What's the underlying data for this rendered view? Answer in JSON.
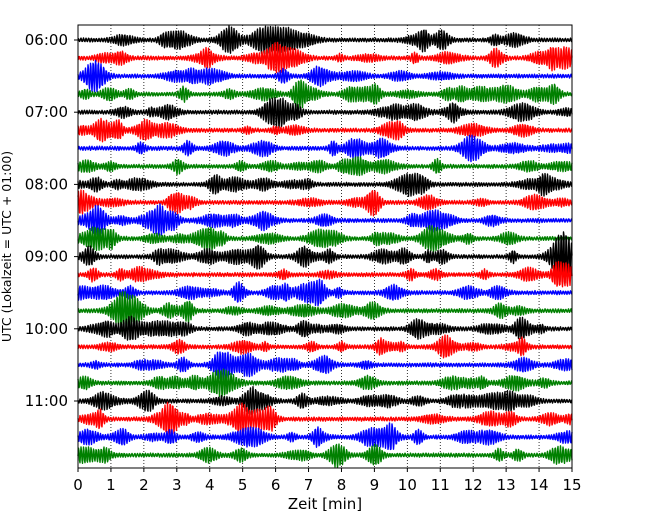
{
  "chart_data": {
    "type": "line",
    "xlabel": "Zeit  [min]",
    "ylabel": "UTC (Lokalzeit = UTC + 01:00)",
    "xlim": [
      0,
      15
    ],
    "x_ticks": [
      "0",
      "1",
      "2",
      "3",
      "4",
      "5",
      "6",
      "7",
      "8",
      "9",
      "10",
      "11",
      "12",
      "13",
      "14",
      "15"
    ],
    "y_ticks": [
      "06:00",
      "07:00",
      "08:00",
      "09:00",
      "10:00",
      "11:00"
    ],
    "grid": "vertical dotted",
    "trace_colors": [
      "#000000",
      "#ff0000",
      "#0000ff",
      "#008000"
    ],
    "traces_per_hour": 4,
    "series": [
      {
        "start": "06:00",
        "color": "#000000"
      },
      {
        "start": "06:15",
        "color": "#ff0000"
      },
      {
        "start": "06:30",
        "color": "#0000ff"
      },
      {
        "start": "06:45",
        "color": "#008000"
      },
      {
        "start": "07:00",
        "color": "#000000"
      },
      {
        "start": "07:15",
        "color": "#ff0000"
      },
      {
        "start": "07:30",
        "color": "#0000ff"
      },
      {
        "start": "07:45",
        "color": "#008000"
      },
      {
        "start": "08:00",
        "color": "#000000"
      },
      {
        "start": "08:15",
        "color": "#ff0000"
      },
      {
        "start": "08:30",
        "color": "#0000ff"
      },
      {
        "start": "08:45",
        "color": "#008000"
      },
      {
        "start": "09:00",
        "color": "#000000"
      },
      {
        "start": "09:15",
        "color": "#ff0000"
      },
      {
        "start": "09:30",
        "color": "#0000ff"
      },
      {
        "start": "09:45",
        "color": "#008000"
      },
      {
        "start": "10:00",
        "color": "#000000"
      },
      {
        "start": "10:15",
        "color": "#ff0000"
      },
      {
        "start": "10:30",
        "color": "#0000ff"
      },
      {
        "start": "10:45",
        "color": "#008000"
      },
      {
        "start": "11:00",
        "color": "#000000"
      },
      {
        "start": "11:15",
        "color": "#ff0000"
      },
      {
        "start": "11:30",
        "color": "#0000ff"
      },
      {
        "start": "11:45",
        "color": "#008000"
      }
    ]
  }
}
